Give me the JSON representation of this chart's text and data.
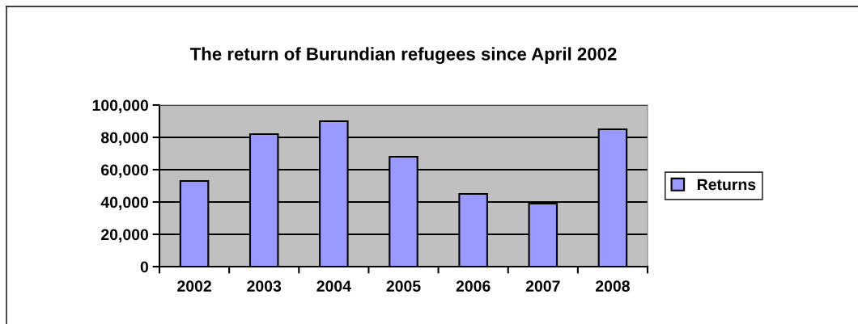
{
  "chart_data": {
    "type": "bar",
    "title": "The return of Burundian refugees since April 2002",
    "categories": [
      "2002",
      "2003",
      "2004",
      "2005",
      "2006",
      "2007",
      "2008"
    ],
    "series": [
      {
        "name": "Returns",
        "color": "#9999ff",
        "values": [
          53000,
          82000,
          90000,
          68000,
          45000,
          39000,
          85000
        ]
      }
    ],
    "ylim": [
      0,
      100000
    ],
    "yticks": [
      {
        "value": 0,
        "label": "0"
      },
      {
        "value": 20000,
        "label": "20,000"
      },
      {
        "value": 40000,
        "label": "40,000"
      },
      {
        "value": 60000,
        "label": "60,000"
      },
      {
        "value": 80000,
        "label": "80,000"
      },
      {
        "value": 100000,
        "label": "100,000"
      }
    ],
    "grid": "y",
    "legend": "right"
  }
}
